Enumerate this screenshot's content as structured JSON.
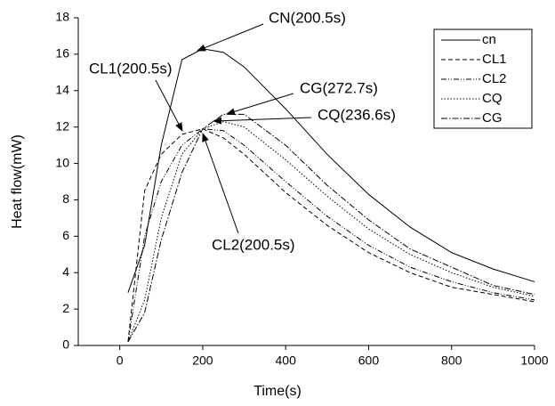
{
  "chart_data": {
    "type": "line",
    "x_label": "Time(s)",
    "y_label": "Heat flow(mW)",
    "x": [
      20,
      60,
      100,
      150,
      200,
      250,
      300,
      400,
      500,
      600,
      700,
      800,
      900,
      1000
    ],
    "series": [
      {
        "name": "cn",
        "color": "#000000",
        "values": [
          2.9,
          5.5,
          11,
          15.7,
          16.3,
          16.1,
          15.3,
          13,
          10.5,
          8.3,
          6.5,
          5.1,
          4.2,
          3.5
        ]
      },
      {
        "name": "CL1",
        "color": "#000000",
        "values": [
          0.2,
          8.5,
          10.5,
          11.6,
          11.9,
          11.4,
          10.5,
          8.4,
          6.6,
          5.1,
          4,
          3.2,
          2.8,
          2.4
        ]
      },
      {
        "name": "CL2",
        "color": "#000000",
        "values": [
          0.2,
          6,
          9,
          11,
          11.9,
          11.8,
          11,
          9,
          7.1,
          5.5,
          4.3,
          3.5,
          2.9,
          2.5
        ]
      },
      {
        "name": "CQ",
        "color": "#000000",
        "values": [
          0.2,
          2.5,
          7,
          10.5,
          11.9,
          12.3,
          12,
          10.2,
          8.2,
          6.4,
          5,
          4,
          3.2,
          2.7
        ]
      },
      {
        "name": "CG",
        "color": "#000000",
        "values": [
          0.2,
          1.8,
          5.8,
          9.5,
          11.9,
          12.7,
          12.7,
          11,
          8.8,
          6.9,
          5.3,
          4.3,
          3.3,
          2.8
        ]
      }
    ],
    "annotations": [
      "CN(200.5s)",
      "CL1(200.5s)",
      "CG(272.7s)",
      "CQ(236.6s)",
      "CL2(200.5s)"
    ],
    "xlim": [
      -100,
      1000
    ],
    "xticks": [
      0,
      200,
      400,
      600,
      800,
      1000
    ],
    "ylim": [
      0,
      18
    ],
    "yticks": [
      0,
      2,
      4,
      6,
      8,
      10,
      12,
      14,
      16,
      18
    ],
    "grid": false,
    "legend": "upper right"
  }
}
